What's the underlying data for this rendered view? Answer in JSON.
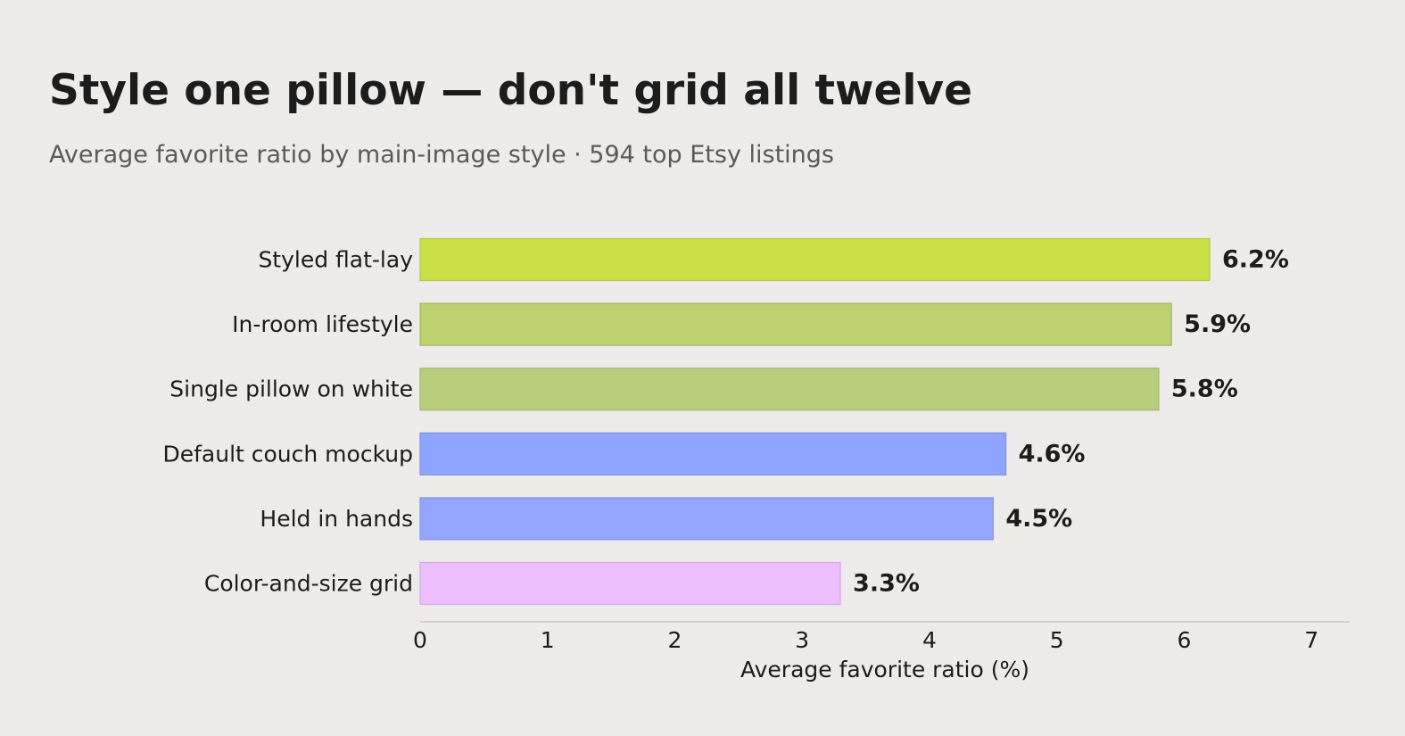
{
  "chart_data": {
    "type": "bar",
    "orientation": "horizontal",
    "title": "Style one pillow — don't grid all twelve",
    "subtitle": "Average favorite ratio by main-image style · 594 top Etsy listings",
    "xlabel": "Average favorite ratio (%)",
    "ylabel": "",
    "categories": [
      "Styled flat-lay",
      "In-room lifestyle",
      "Single pillow on white",
      "Default couch mockup",
      "Held in hands",
      "Color-and-size grid"
    ],
    "values": [
      6.2,
      5.9,
      5.8,
      4.6,
      4.5,
      3.3
    ],
    "value_labels": [
      "6.2%",
      "5.9%",
      "5.8%",
      "4.6%",
      "4.5%",
      "3.3%"
    ],
    "bar_colors": [
      "#cddf46",
      "#bdd16f",
      "#b8ce7b",
      "#8fa4fe",
      "#94a6ff",
      "#edbfff"
    ],
    "bar_edge_colors": [
      "#b5c449",
      "#a4b66a",
      "#a1b476",
      "#7e90e0",
      "#8395e1",
      "#d2aae6"
    ],
    "xlim": [
      0,
      7.3
    ],
    "xticks": [
      0,
      1,
      2,
      3,
      4,
      5,
      6,
      7
    ],
    "grid": false,
    "legend": "none"
  }
}
